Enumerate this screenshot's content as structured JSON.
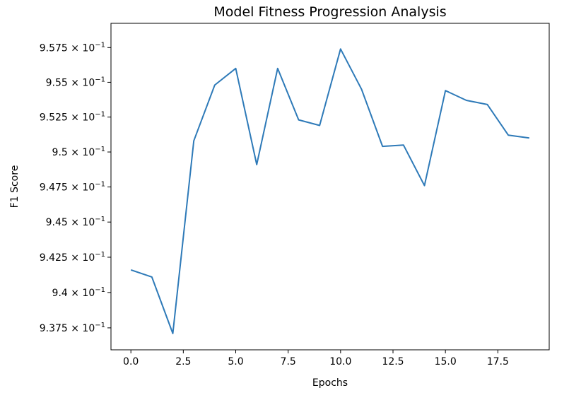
{
  "chart_data": {
    "type": "line",
    "title": "Model Fitness Progression Analysis",
    "xlabel": "Epochs",
    "ylabel": "F1 Score",
    "xlim": [
      -0.95,
      19.95
    ],
    "ylim": [
      0.93595,
      0.95925
    ],
    "y_scale": "log",
    "grid": false,
    "x_ticks": [
      {
        "value": 0,
        "label": "0.0"
      },
      {
        "value": 2.5,
        "label": "2.5"
      },
      {
        "value": 5,
        "label": "5.0"
      },
      {
        "value": 7.5,
        "label": "7.5"
      },
      {
        "value": 10,
        "label": "10.0"
      },
      {
        "value": 12.5,
        "label": "12.5"
      },
      {
        "value": 15,
        "label": "15.0"
      },
      {
        "value": 17.5,
        "label": "17.5"
      }
    ],
    "y_ticks": [
      {
        "value": 0.9375,
        "mantissa": "9.375",
        "base": "× 10",
        "exp": "−1"
      },
      {
        "value": 0.94,
        "mantissa": "9.4",
        "base": "× 10",
        "exp": "−1"
      },
      {
        "value": 0.9425,
        "mantissa": "9.425",
        "base": "× 10",
        "exp": "−1"
      },
      {
        "value": 0.945,
        "mantissa": "9.45",
        "base": "× 10",
        "exp": "−1"
      },
      {
        "value": 0.9475,
        "mantissa": "9.475",
        "base": "× 10",
        "exp": "−1"
      },
      {
        "value": 0.95,
        "mantissa": "9.5",
        "base": "× 10",
        "exp": "−1"
      },
      {
        "value": 0.9525,
        "mantissa": "9.525",
        "base": "× 10",
        "exp": "−1"
      },
      {
        "value": 0.955,
        "mantissa": "9.55",
        "base": "× 10",
        "exp": "−1"
      },
      {
        "value": 0.9575,
        "mantissa": "9.575",
        "base": "× 10",
        "exp": "−1"
      }
    ],
    "x": [
      0,
      1,
      2,
      3,
      4,
      5,
      6,
      7,
      8,
      9,
      10,
      11,
      12,
      13,
      14,
      15,
      16,
      17,
      18,
      19
    ],
    "series": [
      {
        "color": "#2e7ab8",
        "values": [
          0.9416,
          0.9411,
          0.9371,
          0.9508,
          0.9548,
          0.956,
          0.9491,
          0.956,
          0.9523,
          0.9519,
          0.9574,
          0.9545,
          0.9504,
          0.9505,
          0.9476,
          0.9544,
          0.9537,
          0.9534,
          0.9512,
          0.951
        ]
      }
    ]
  }
}
